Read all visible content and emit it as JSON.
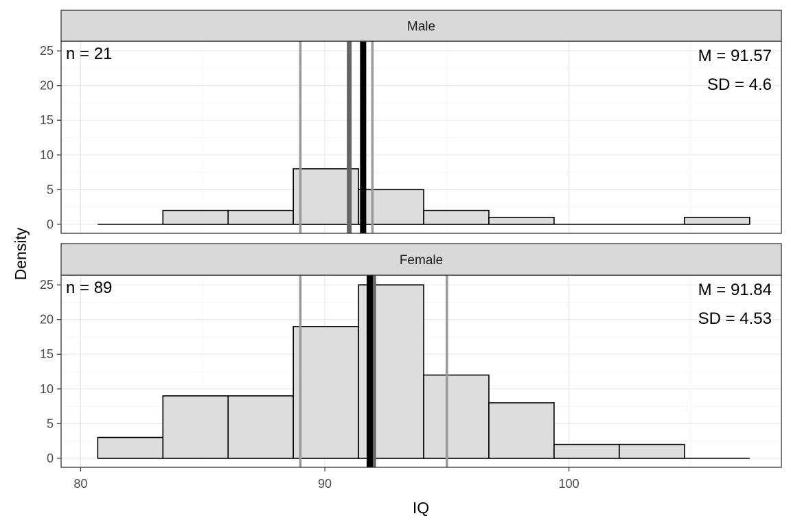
{
  "chart_data": {
    "type": "bar",
    "subtype": "faceted-histogram",
    "xlabel": "IQ",
    "ylabel": "Density",
    "xlim": [
      79.2,
      108.7
    ],
    "ylim": [
      -1.3,
      26.4
    ],
    "x_ticks": [
      80,
      90,
      100
    ],
    "y_ticks": [
      0,
      5,
      10,
      15,
      20,
      25
    ],
    "grid": true,
    "bin_edges": [
      80.7,
      83.37,
      86.04,
      88.71,
      91.38,
      94.05,
      96.72,
      99.39,
      102.06,
      104.73,
      107.4
    ],
    "panels": [
      {
        "strip": "Male",
        "n_label": "n = 21",
        "mean_label": "M = 91.57",
        "sd_label": "SD = 4.6",
        "counts": [
          0,
          2,
          2,
          8,
          5,
          2,
          1,
          0,
          0,
          1
        ],
        "lines": [
          {
            "x": 89.0,
            "role": "lower-quantile",
            "color": "#999999"
          },
          {
            "x": 91.0,
            "role": "median",
            "color": "#666666"
          },
          {
            "x": 91.57,
            "role": "mean",
            "color": "#000000"
          },
          {
            "x": 91.95,
            "role": "upper-quantile",
            "color": "#999999"
          }
        ]
      },
      {
        "strip": "Female",
        "n_label": "n = 89",
        "mean_label": "M = 91.84",
        "sd_label": "SD = 4.53",
        "counts": [
          3,
          9,
          9,
          19,
          25,
          12,
          8,
          2,
          2,
          0
        ],
        "lines": [
          {
            "x": 89.0,
            "role": "lower-quantile",
            "color": "#999999"
          },
          {
            "x": 92.0,
            "role": "median",
            "color": "#666666"
          },
          {
            "x": 91.84,
            "role": "mean",
            "color": "#000000"
          },
          {
            "x": 95.0,
            "role": "upper-quantile",
            "color": "#999999"
          }
        ]
      }
    ]
  }
}
